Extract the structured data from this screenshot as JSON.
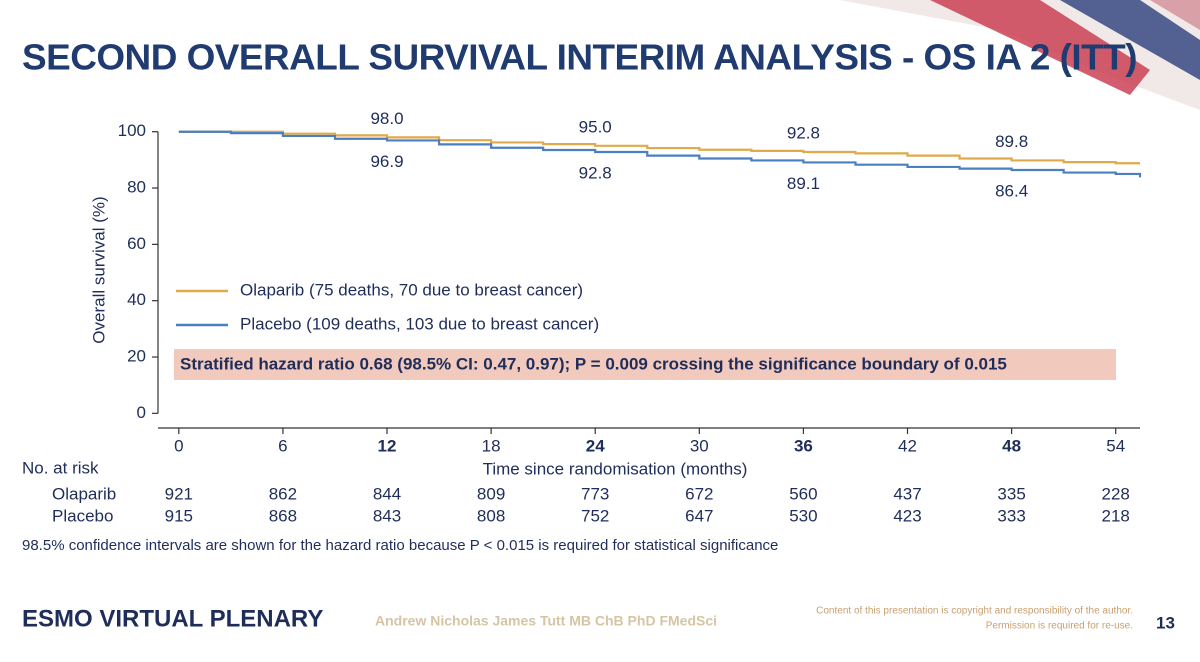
{
  "header": {
    "title": "SECOND OVERALL SURVIVAL INTERIM ANALYSIS - OS IA 2 (ITT)"
  },
  "chart_data": {
    "type": "step",
    "y_label": "Overall survival (%)",
    "x_label": "Time since randomisation (months)",
    "x": [
      0,
      3,
      6,
      9,
      12,
      15,
      18,
      21,
      24,
      27,
      30,
      33,
      36,
      39,
      42,
      45,
      48,
      51,
      54,
      55.4
    ],
    "series": [
      {
        "name": "Olaparib (75 deaths, 70 due to breast cancer)",
        "color": "#e0a94a",
        "values": [
          100,
          100,
          99.3,
          98.7,
          98.0,
          97.0,
          96.2,
          95.6,
          95.0,
          94.2,
          93.6,
          93.2,
          92.8,
          92.3,
          91.5,
          90.5,
          89.8,
          89.2,
          88.8,
          88.8
        ],
        "value_labels": [
          null,
          null,
          null,
          null,
          "98.0",
          null,
          null,
          null,
          "95.0",
          null,
          null,
          null,
          "92.8",
          null,
          null,
          null,
          "89.8",
          null,
          null,
          null
        ]
      },
      {
        "name": "Placebo (109 deaths, 103 due to breast cancer)",
        "color": "#4a7fc0",
        "values": [
          100,
          99.5,
          98.5,
          97.5,
          96.9,
          95.5,
          94.3,
          93.5,
          92.8,
          91.5,
          90.5,
          89.8,
          89.1,
          88.3,
          87.5,
          86.9,
          86.4,
          85.5,
          85.0,
          83.8
        ],
        "value_labels": [
          null,
          null,
          null,
          null,
          "96.9",
          null,
          null,
          null,
          "92.8",
          null,
          null,
          null,
          "89.1",
          null,
          null,
          null,
          "86.4",
          null,
          null,
          null
        ]
      }
    ],
    "xlim": [
      -1.2,
      55.4
    ],
    "ylim": [
      -5.2,
      107
    ],
    "xticks": [
      0,
      6,
      12,
      18,
      24,
      30,
      36,
      42,
      48,
      54
    ],
    "xticks_bold": [
      12,
      24,
      36,
      48
    ],
    "yticks": [
      0,
      20,
      40,
      60,
      80,
      100
    ],
    "annotation": "Stratified hazard ratio 0.68 (98.5% CI: 0.47, 0.97); P = 0.009 crossing the significance boundary of 0.015",
    "risk_table": {
      "title": "No. at risk",
      "rows": [
        {
          "name": "Olaparib",
          "values": [
            921,
            862,
            844,
            809,
            773,
            672,
            560,
            437,
            335,
            228
          ]
        },
        {
          "name": "Placebo",
          "values": [
            915,
            868,
            843,
            808,
            752,
            647,
            530,
            423,
            333,
            218
          ]
        }
      ]
    },
    "footnote": "98.5% confidence intervals are shown for the hazard ratio because P < 0.015 is required for statistical significance"
  },
  "footer": {
    "brand": "ESMO VIRTUAL PLENARY",
    "author": "Andrew Nicholas James Tutt MB ChB PhD FMedSci",
    "copyright": [
      "Content of this presentation is copyright and responsibility of the author.",
      "Permission is required for re-use."
    ],
    "page": "13"
  }
}
